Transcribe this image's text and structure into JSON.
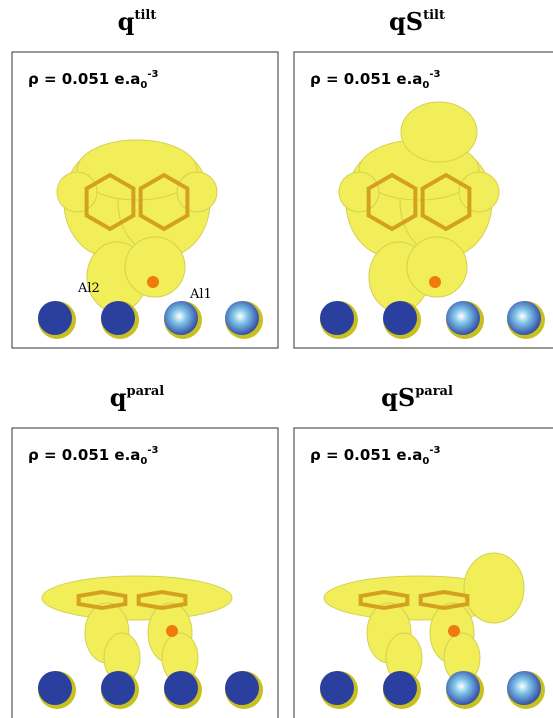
{
  "panels": [
    {
      "title": {
        "base": "q",
        "sup": "tilt"
      },
      "density": {
        "text": "ρ = 0.051 e.a",
        "sub": "0",
        "sup": "-3"
      },
      "atom_labels": [
        "Al2",
        "Al1"
      ]
    },
    {
      "title": {
        "base": "qS",
        "sup": "tilt"
      },
      "density": {
        "text": "ρ = 0.051 e.a",
        "sub": "0",
        "sup": "-3"
      }
    },
    {
      "title": {
        "base": "q",
        "sup": "paral"
      },
      "density": {
        "text": "ρ = 0.051 e.a",
        "sub": "0",
        "sup": "-3"
      }
    },
    {
      "title": {
        "base": "qS",
        "sup": "paral"
      },
      "density": {
        "text": "ρ = 0.051 e.a",
        "sub": "0",
        "sup": "-3"
      }
    }
  ]
}
